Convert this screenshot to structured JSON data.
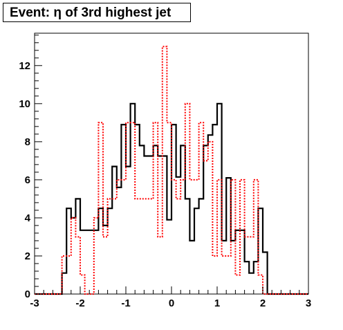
{
  "title": "Event: η of 3rd highest jet",
  "chart_data": {
    "type": "histogram",
    "title": "Event: η of 3rd highest jet",
    "xlabel": "",
    "ylabel": "",
    "xlim": [
      -3,
      3
    ],
    "ylim": [
      0,
      13.7
    ],
    "x_ticks": [
      -3,
      -2,
      -1,
      0,
      1,
      2,
      3
    ],
    "x_tick_labels": [
      "-3",
      "-2",
      "-1",
      "0",
      "1",
      "2",
      "3"
    ],
    "y_ticks": [
      0,
      2,
      4,
      6,
      8,
      10,
      12
    ],
    "y_tick_labels": [
      "0",
      "2",
      "4",
      "6",
      "8",
      "10",
      "12"
    ],
    "grid": false,
    "bin_edges": [
      -3.0,
      -2.4,
      -2.3,
      -2.2,
      -2.1,
      -2.0,
      -1.9,
      -1.8,
      -1.7,
      -1.6,
      -1.5,
      -1.4,
      -1.3,
      -1.2,
      -1.1,
      -1.0,
      -0.9,
      -0.8,
      -0.7,
      -0.6,
      -0.5,
      -0.4,
      -0.3,
      -0.2,
      -0.1,
      0.0,
      0.1,
      0.2,
      0.3,
      0.4,
      0.5,
      0.6,
      0.7,
      0.8,
      0.9,
      1.0,
      1.1,
      1.2,
      1.3,
      1.4,
      1.5,
      1.6,
      1.7,
      1.8,
      1.9,
      2.0,
      2.1,
      2.2,
      2.3,
      2.4,
      3.0
    ],
    "series": [
      {
        "style": "solid",
        "color": "#000000",
        "values": [
          0,
          1.1,
          4.5,
          4.0,
          5.0,
          3.35,
          3.35,
          3.35,
          3.35,
          4.5,
          3.6,
          4.5,
          6.7,
          5.6,
          8.9,
          6.7,
          10.0,
          8.9,
          7.8,
          7.25,
          7.25,
          7.8,
          7.25,
          7.25,
          3.9,
          8.9,
          6.15,
          7.8,
          5.0,
          2.8,
          4.5,
          5.0,
          7.8,
          8.35,
          8.9,
          10.0,
          2.8,
          6.1,
          2.8,
          3.35,
          3.35,
          1.7,
          1.1,
          1.7,
          4.5,
          2.2,
          0,
          0,
          0,
          0
        ]
      },
      {
        "style": "dotted",
        "color": "#ff0000",
        "values": [
          0,
          2.0,
          2.0,
          4.0,
          3.0,
          1.0,
          0,
          0,
          4.0,
          9.0,
          3.0,
          5.0,
          5.0,
          6.0,
          6.0,
          9.0,
          9.0,
          5.0,
          5.0,
          5.0,
          5.0,
          9.0,
          3.0,
          13.0,
          9.0,
          6.0,
          5.0,
          6.0,
          10.0,
          6.0,
          6.0,
          9.0,
          7.0,
          8.0,
          2.0,
          6.0,
          2.0,
          2.0,
          6.0,
          1.0,
          6.0,
          3.0,
          3.0,
          6.0,
          1.0,
          0,
          0,
          0,
          0,
          0
        ]
      }
    ]
  }
}
